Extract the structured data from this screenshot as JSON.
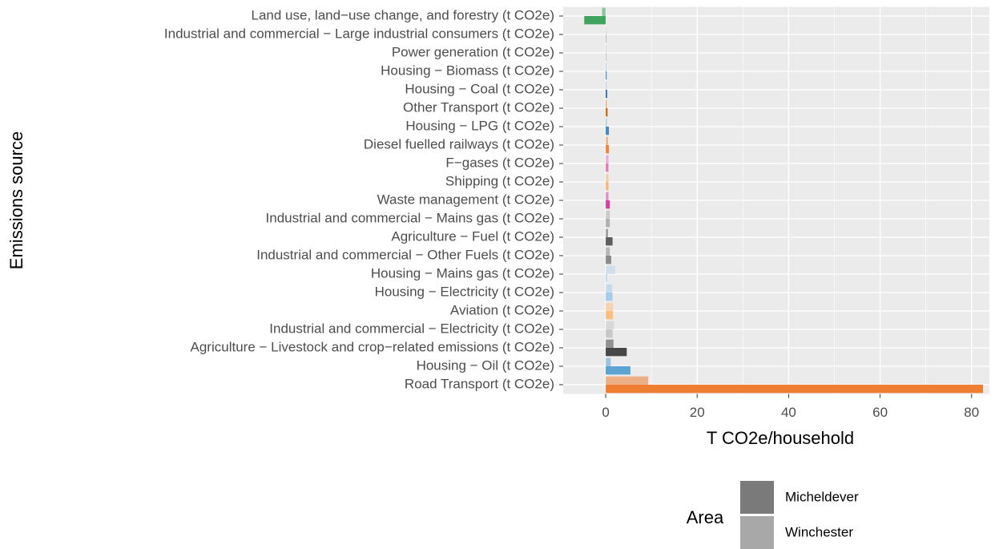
{
  "chart_data": {
    "type": "bar",
    "orientation": "horizontal",
    "x_label": "T CO2e/household",
    "y_label": "Emissions source",
    "categories": [
      "Land use, land−use change, and forestry (t CO2e)",
      "Industrial and commercial − Large industrial consumers (t CO2e)",
      "Power generation (t CO2e)",
      "Housing − Biomass (t CO2e)",
      "Housing − Coal (t CO2e)",
      "Other Transport (t CO2e)",
      "Housing − LPG (t CO2e)",
      "Diesel fuelled railways (t CO2e)",
      "F−gases (t CO2e)",
      "Shipping (t CO2e)",
      "Waste management (t CO2e)",
      "Industrial and commercial − Mains gas (t CO2e)",
      "Agriculture − Fuel (t CO2e)",
      "Industrial and commercial − Other Fuels (t CO2e)",
      "Housing − Mains gas (t CO2e)",
      "Housing − Electricity (t CO2e)",
      "Aviation (t CO2e)",
      "Industrial and commercial − Electricity (t CO2e)",
      "Agriculture − Livestock and crop−related emissions (t CO2e)",
      "Housing − Oil (t CO2e)",
      "Road Transport (t CO2e)"
    ],
    "category_colors": [
      "#3fa45e",
      "#8c8c8c",
      "#8c8c8c",
      "#3b82c4",
      "#1f5fa8",
      "#d95f02",
      "#3b8bc8",
      "#f5813a",
      "#e37bbd",
      "#fbb570",
      "#d63fa6",
      "#b0b0b0",
      "#5e5e5e",
      "#8a8a8a",
      "#bcd6ee",
      "#a9cbe9",
      "#fcbf80",
      "#c8c8c8",
      "#474747",
      "#5aa3d2",
      "#ef7d32"
    ],
    "legend_title": "Area",
    "series": [
      {
        "name": "Micheldever",
        "color": "#7a7a7a",
        "alpha": 1,
        "values": [
          -4.7,
          0.1,
          0,
          0.2,
          0.3,
          0.4,
          0.7,
          0.7,
          0.6,
          0.6,
          0.9,
          0.9,
          1.5,
          1.2,
          0.3,
          1.5,
          1.6,
          1.5,
          4.6,
          5.4,
          82.5
        ]
      },
      {
        "name": "Winchester",
        "color": "#a8a8a8",
        "alpha": 0.55,
        "values": [
          -0.8,
          0.1,
          0,
          0.1,
          0.1,
          0.2,
          0.2,
          0.5,
          0.6,
          0.6,
          0.6,
          0.9,
          0.5,
          0.9,
          2.1,
          1.4,
          1.6,
          1.8,
          1.7,
          1.1,
          9.3
        ]
      }
    ],
    "xlim": [
      -9.3,
      83.9
    ],
    "xticks": [
      0,
      20,
      40,
      60,
      80
    ],
    "grid": true,
    "legend_position": "bottom"
  }
}
